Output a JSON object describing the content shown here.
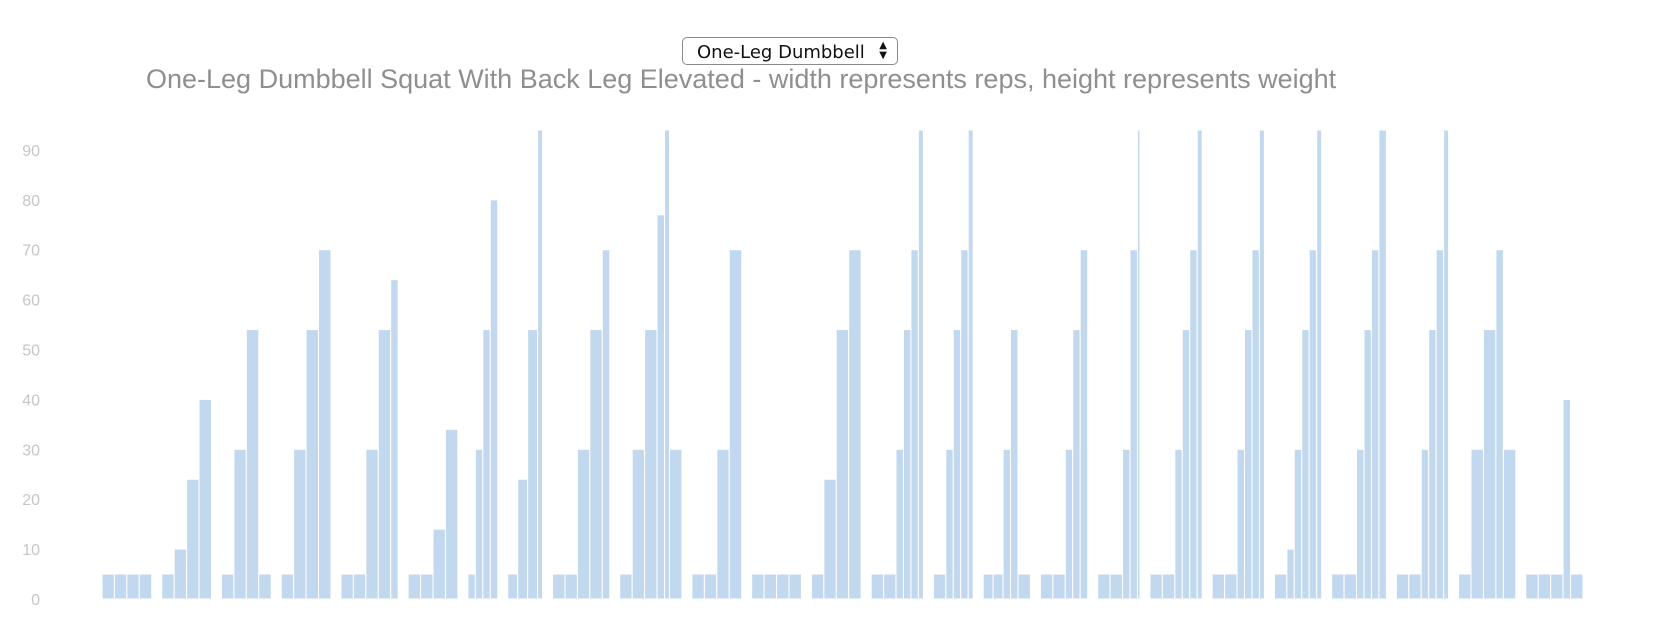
{
  "exercise_select": {
    "selected": "One-Leg Dumbbell Squat With Back Leg Elevated"
  },
  "colors": {
    "bar": "#c2d8ee",
    "title": "#8f8f8f",
    "ticks": "#c6c6c6"
  },
  "chart_data": {
    "type": "bar",
    "title": "One-Leg Dumbbell Squat With Back Leg Elevated - width represents reps, height represents weight",
    "xlabel": "",
    "ylabel": "",
    "ylim": [
      0,
      94
    ],
    "yticks": [
      0,
      10,
      20,
      30,
      40,
      50,
      60,
      70,
      80,
      90
    ],
    "grid": false,
    "legend": "none",
    "sessions": [
      {
        "sets": [
          {
            "weight": 5,
            "reps": 10
          },
          {
            "weight": 5,
            "reps": 10
          },
          {
            "weight": 5,
            "reps": 10
          },
          {
            "weight": 5,
            "reps": 10
          }
        ]
      },
      {
        "sets": [
          {
            "weight": 5,
            "reps": 10
          },
          {
            "weight": 10,
            "reps": 10
          },
          {
            "weight": 24,
            "reps": 10
          },
          {
            "weight": 40,
            "reps": 10
          }
        ]
      },
      {
        "sets": [
          {
            "weight": 5,
            "reps": 10
          },
          {
            "weight": 30,
            "reps": 10
          },
          {
            "weight": 54,
            "reps": 10
          },
          {
            "weight": 5,
            "reps": 10
          }
        ]
      },
      {
        "sets": [
          {
            "weight": 5,
            "reps": 10
          },
          {
            "weight": 30,
            "reps": 10
          },
          {
            "weight": 54,
            "reps": 10
          },
          {
            "weight": 70,
            "reps": 10
          }
        ]
      },
      {
        "sets": [
          {
            "weight": 5,
            "reps": 10
          },
          {
            "weight": 5,
            "reps": 10
          },
          {
            "weight": 30,
            "reps": 10
          },
          {
            "weight": 54,
            "reps": 10
          },
          {
            "weight": 64,
            "reps": 6
          }
        ]
      },
      {
        "sets": [
          {
            "weight": 5,
            "reps": 10
          },
          {
            "weight": 5,
            "reps": 10
          },
          {
            "weight": 14,
            "reps": 10
          },
          {
            "weight": 34,
            "reps": 10
          }
        ]
      },
      {
        "sets": [
          {
            "weight": 5,
            "reps": 6
          },
          {
            "weight": 30,
            "reps": 6
          },
          {
            "weight": 54,
            "reps": 6
          },
          {
            "weight": 80,
            "reps": 6
          }
        ]
      },
      {
        "sets": [
          {
            "weight": 5,
            "reps": 8
          },
          {
            "weight": 24,
            "reps": 8
          },
          {
            "weight": 54,
            "reps": 8
          },
          {
            "weight": 94,
            "reps": 4
          }
        ]
      },
      {
        "sets": [
          {
            "weight": 5,
            "reps": 10
          },
          {
            "weight": 5,
            "reps": 10
          },
          {
            "weight": 30,
            "reps": 10
          },
          {
            "weight": 54,
            "reps": 10
          },
          {
            "weight": 70,
            "reps": 6
          }
        ]
      },
      {
        "sets": [
          {
            "weight": 5,
            "reps": 10
          },
          {
            "weight": 30,
            "reps": 10
          },
          {
            "weight": 54,
            "reps": 10
          },
          {
            "weight": 77,
            "reps": 6
          },
          {
            "weight": 94,
            "reps": 4
          },
          {
            "weight": 30,
            "reps": 10
          }
        ]
      },
      {
        "sets": [
          {
            "weight": 5,
            "reps": 10
          },
          {
            "weight": 5,
            "reps": 10
          },
          {
            "weight": 30,
            "reps": 10
          },
          {
            "weight": 70,
            "reps": 10
          }
        ]
      },
      {
        "sets": [
          {
            "weight": 5,
            "reps": 10
          },
          {
            "weight": 5,
            "reps": 10
          },
          {
            "weight": 5,
            "reps": 10
          },
          {
            "weight": 5,
            "reps": 10
          }
        ]
      },
      {
        "sets": [
          {
            "weight": 5,
            "reps": 10
          },
          {
            "weight": 24,
            "reps": 10
          },
          {
            "weight": 54,
            "reps": 10
          },
          {
            "weight": 70,
            "reps": 10
          }
        ]
      },
      {
        "sets": [
          {
            "weight": 5,
            "reps": 10
          },
          {
            "weight": 5,
            "reps": 10
          },
          {
            "weight": 30,
            "reps": 6
          },
          {
            "weight": 54,
            "reps": 6
          },
          {
            "weight": 70,
            "reps": 6
          },
          {
            "weight": 94,
            "reps": 4
          }
        ]
      },
      {
        "sets": [
          {
            "weight": 5,
            "reps": 10
          },
          {
            "weight": 30,
            "reps": 6
          },
          {
            "weight": 54,
            "reps": 6
          },
          {
            "weight": 70,
            "reps": 6
          },
          {
            "weight": 94,
            "reps": 4
          }
        ]
      },
      {
        "sets": [
          {
            "weight": 5,
            "reps": 8
          },
          {
            "weight": 5,
            "reps": 8
          },
          {
            "weight": 30,
            "reps": 6
          },
          {
            "weight": 54,
            "reps": 6
          },
          {
            "weight": 5,
            "reps": 10
          }
        ]
      },
      {
        "sets": [
          {
            "weight": 5,
            "reps": 10
          },
          {
            "weight": 5,
            "reps": 10
          },
          {
            "weight": 30,
            "reps": 6
          },
          {
            "weight": 54,
            "reps": 6
          },
          {
            "weight": 70,
            "reps": 6
          }
        ]
      },
      {
        "sets": [
          {
            "weight": 5,
            "reps": 10
          },
          {
            "weight": 5,
            "reps": 10
          },
          {
            "weight": 30,
            "reps": 6
          },
          {
            "weight": 70,
            "reps": 6
          },
          {
            "weight": 94,
            "reps": 2
          }
        ]
      },
      {
        "sets": [
          {
            "weight": 5,
            "reps": 10
          },
          {
            "weight": 5,
            "reps": 10
          },
          {
            "weight": 30,
            "reps": 6
          },
          {
            "weight": 54,
            "reps": 6
          },
          {
            "weight": 70,
            "reps": 6
          },
          {
            "weight": 94,
            "reps": 4
          }
        ]
      },
      {
        "sets": [
          {
            "weight": 5,
            "reps": 10
          },
          {
            "weight": 5,
            "reps": 10
          },
          {
            "weight": 30,
            "reps": 6
          },
          {
            "weight": 54,
            "reps": 6
          },
          {
            "weight": 70,
            "reps": 6
          },
          {
            "weight": 94,
            "reps": 4
          }
        ]
      },
      {
        "sets": [
          {
            "weight": 5,
            "reps": 10
          },
          {
            "weight": 10,
            "reps": 6
          },
          {
            "weight": 30,
            "reps": 6
          },
          {
            "weight": 54,
            "reps": 6
          },
          {
            "weight": 70,
            "reps": 6
          },
          {
            "weight": 94,
            "reps": 4
          }
        ]
      },
      {
        "sets": [
          {
            "weight": 5,
            "reps": 10
          },
          {
            "weight": 5,
            "reps": 10
          },
          {
            "weight": 30,
            "reps": 6
          },
          {
            "weight": 54,
            "reps": 6
          },
          {
            "weight": 70,
            "reps": 6
          },
          {
            "weight": 94,
            "reps": 6
          }
        ]
      },
      {
        "sets": [
          {
            "weight": 5,
            "reps": 10
          },
          {
            "weight": 5,
            "reps": 10
          },
          {
            "weight": 30,
            "reps": 6
          },
          {
            "weight": 54,
            "reps": 6
          },
          {
            "weight": 70,
            "reps": 6
          },
          {
            "weight": 94,
            "reps": 4
          }
        ]
      },
      {
        "sets": [
          {
            "weight": 5,
            "reps": 10
          },
          {
            "weight": 30,
            "reps": 10
          },
          {
            "weight": 54,
            "reps": 10
          },
          {
            "weight": 70,
            "reps": 6
          },
          {
            "weight": 30,
            "reps": 10
          }
        ]
      },
      {
        "sets": [
          {
            "weight": 5,
            "reps": 10
          },
          {
            "weight": 5,
            "reps": 10
          },
          {
            "weight": 5,
            "reps": 10
          },
          {
            "weight": 40,
            "reps": 6
          },
          {
            "weight": 5,
            "reps": 10
          }
        ]
      }
    ]
  }
}
